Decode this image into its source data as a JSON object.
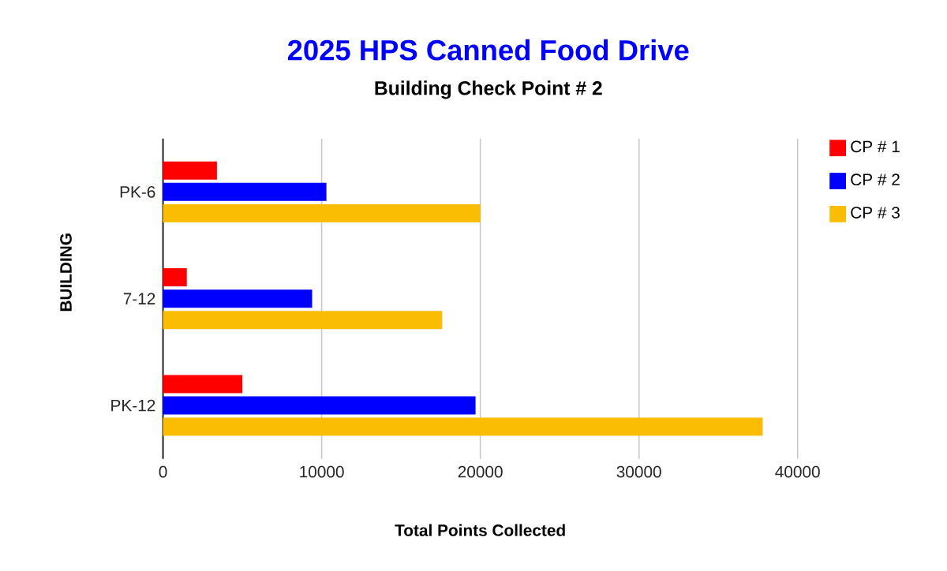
{
  "chart_data": {
    "type": "bar",
    "orientation": "horizontal",
    "title": "2025 HPS Canned Food Drive",
    "subtitle": "Building Check Point # 2",
    "xlabel": "Total Points Collected",
    "ylabel": "BUILDING",
    "categories": [
      "PK-6",
      "7-12",
      "PK-12"
    ],
    "series": [
      {
        "name": "CP # 1",
        "color": "#ff0000",
        "values": [
          3400,
          1500,
          5000
        ]
      },
      {
        "name": "CP # 2",
        "color": "#0000ff",
        "values": [
          10300,
          9400,
          19700
        ]
      },
      {
        "name": "CP # 3",
        "color": "#fbbc04",
        "values": [
          20000,
          17600,
          37800
        ]
      }
    ],
    "xlim": [
      0,
      40000
    ],
    "xticks": [
      0,
      10000,
      20000,
      30000,
      40000
    ],
    "grid": "x",
    "legend": "top right"
  }
}
